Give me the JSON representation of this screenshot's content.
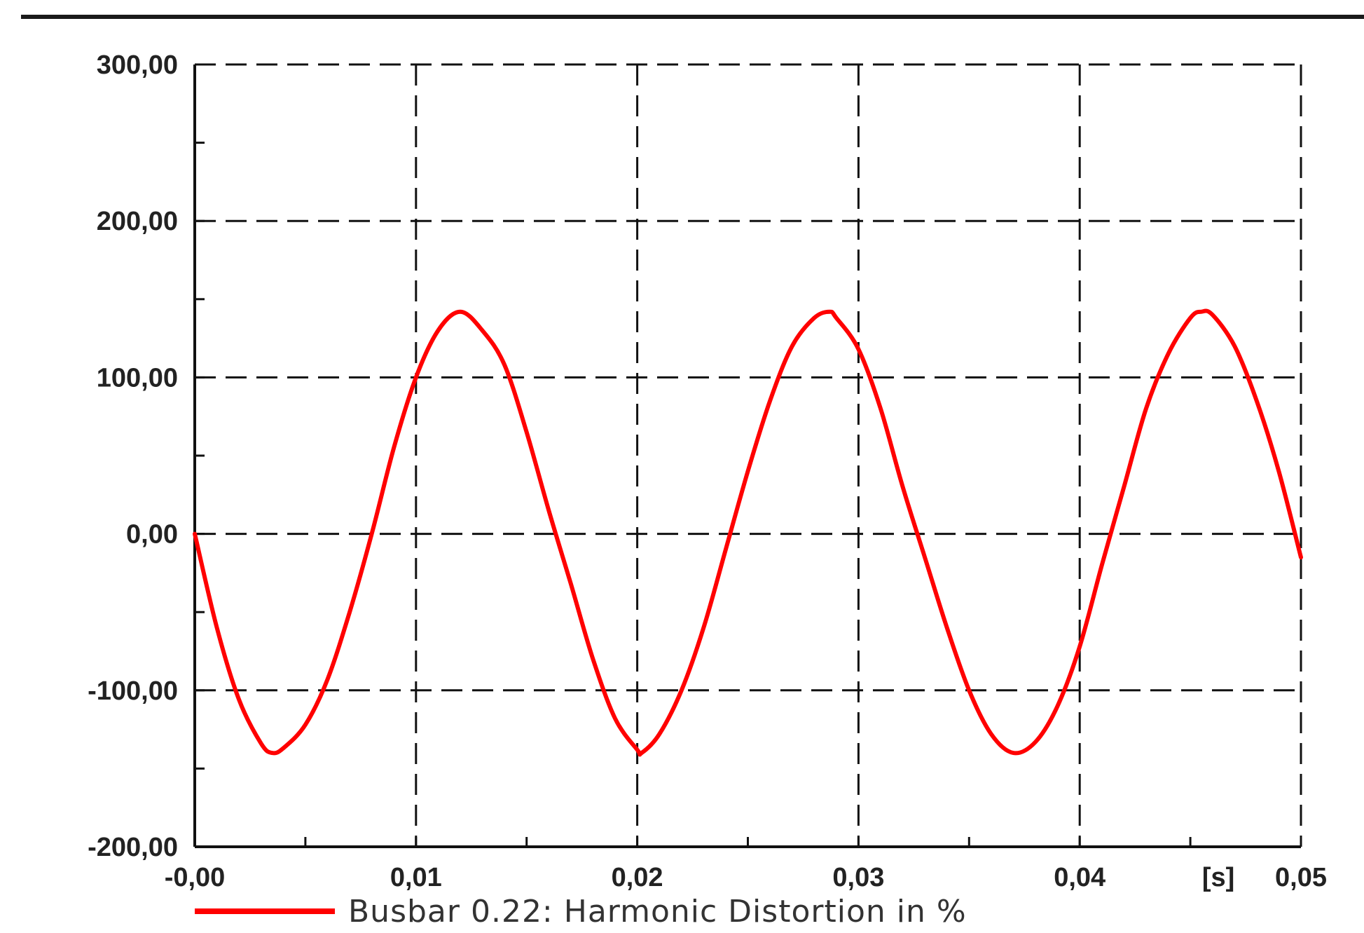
{
  "chart_data": {
    "type": "line",
    "title": "",
    "xlabel": "",
    "ylabel": "",
    "x_unit_label": "[s]",
    "xlim": [
      0,
      0.05
    ],
    "ylim": [
      -200,
      300
    ],
    "x_ticks": [
      0,
      0.01,
      0.02,
      0.03,
      0.04,
      0.05
    ],
    "x_tick_labels": [
      "-0,00",
      "0,01",
      "0,02",
      "0,03",
      "0,04",
      "0,05"
    ],
    "y_ticks": [
      -200,
      -100,
      0,
      100,
      200,
      300
    ],
    "y_tick_labels": [
      "-200,00",
      "-100,00",
      "0,00",
      "100,00",
      "200,00",
      "300,00"
    ],
    "grid": true,
    "grid_style": "dashed",
    "legend_position": "bottom-left",
    "series": [
      {
        "name": "Busbar 0.22: Harmonic Distortion in %",
        "color": "#ff0000",
        "x": [
          0,
          0.001,
          0.002,
          0.003,
          0.0035,
          0.004,
          0.005,
          0.006,
          0.007,
          0.008,
          0.009,
          0.01,
          0.011,
          0.012,
          0.013,
          0.014,
          0.015,
          0.016,
          0.017,
          0.018,
          0.019,
          0.02,
          0.0202,
          0.021,
          0.022,
          0.023,
          0.024,
          0.025,
          0.026,
          0.027,
          0.028,
          0.0287,
          0.029,
          0.03,
          0.031,
          0.032,
          0.033,
          0.034,
          0.035,
          0.036,
          0.037,
          0.038,
          0.039,
          0.04,
          0.041,
          0.042,
          0.043,
          0.044,
          0.045,
          0.0455,
          0.046,
          0.047,
          0.048,
          0.049,
          0.05
        ],
        "values": [
          0,
          -60,
          -106,
          -134,
          -140,
          -137,
          -122,
          -93,
          -50,
          0,
          55,
          100,
          130,
          142,
          130,
          108,
          65,
          15,
          -32,
          -80,
          -118,
          -138,
          -140,
          -128,
          -100,
          -60,
          -10,
          40,
          85,
          120,
          138,
          142,
          138,
          118,
          80,
          30,
          -15,
          -60,
          -100,
          -128,
          -140,
          -133,
          -110,
          -72,
          -20,
          30,
          80,
          115,
          138,
          142,
          140,
          120,
          85,
          40,
          -15
        ]
      }
    ]
  }
}
